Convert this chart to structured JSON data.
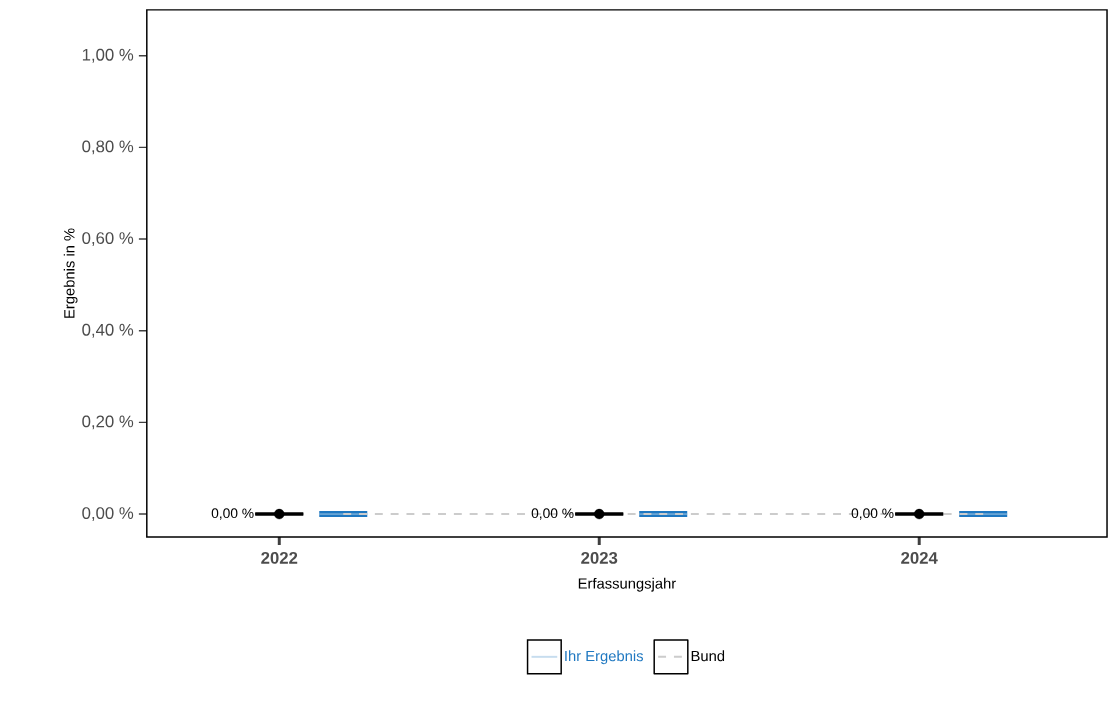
{
  "chart_data": {
    "type": "scatter",
    "xlabel": "Erfassungsjahr",
    "ylabel": "Ergebnis in %",
    "categories": [
      "2022",
      "2023",
      "2024"
    ],
    "ylim": [
      -0.05,
      1.1
    ],
    "yticks": [
      {
        "value": 0,
        "label": "0,00 %"
      },
      {
        "value": 0.2,
        "label": "0,20 %"
      },
      {
        "value": 0.4,
        "label": "0,40 %"
      },
      {
        "value": 0.6,
        "label": "0,60 %"
      },
      {
        "value": 0.8,
        "label": "0,80 %"
      },
      {
        "value": 1.0,
        "label": "1,00 %"
      }
    ],
    "series": [
      {
        "color": "#000000",
        "values": [
          0,
          0,
          0
        ],
        "errors": [
          0,
          0,
          0
        ],
        "marker": "circle",
        "value_labels": [
          "0,00 %",
          "0,00 %",
          "0,00 %"
        ]
      },
      {
        "type": "line",
        "name": "Bund",
        "color": "#cccccc",
        "values": [
          0,
          0,
          0
        ],
        "line_style": "dashed",
        "marker": "none"
      },
      {
        "type": "box",
        "name": "Ihr Ergebnis",
        "color": "#1f78c1",
        "boxes": [
          {
            "low": 0,
            "q1": 0,
            "median": 0,
            "q3": 0,
            "high": 0
          },
          {
            "low": 0,
            "q1": 0,
            "median": 0,
            "q3": 0,
            "high": 0
          },
          {
            "low": 0,
            "q1": 0,
            "median": 0,
            "q3": 0,
            "high": 0
          }
        ]
      }
    ],
    "grid": false,
    "legend": "bottom"
  }
}
